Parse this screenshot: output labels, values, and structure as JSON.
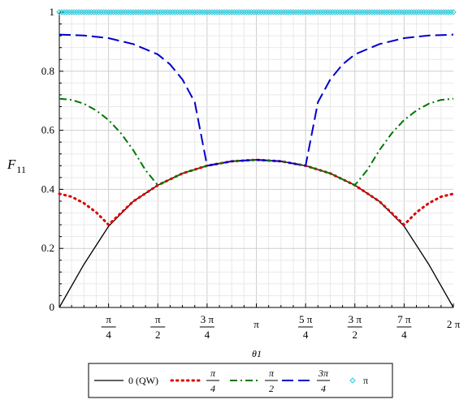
{
  "chart_data": {
    "type": "line",
    "title": "",
    "xlabel": "θ1",
    "ylabel": "F",
    "ylabel_subscript": "11",
    "xlim": [
      0,
      6.283185
    ],
    "ylim": [
      0,
      1
    ],
    "y_ticks": [
      {
        "value": 0,
        "label": "0"
      },
      {
        "value": 0.2,
        "label": "0.2"
      },
      {
        "value": 0.4,
        "label": "0.4"
      },
      {
        "value": 0.6,
        "label": "0.6"
      },
      {
        "value": 0.8,
        "label": "0.8"
      },
      {
        "value": 1,
        "label": "1"
      }
    ],
    "x_ticks": [
      {
        "value": 0.785398,
        "num": "π",
        "den": "4"
      },
      {
        "value": 1.570796,
        "num": "π",
        "den": "2"
      },
      {
        "value": 2.356194,
        "num": "3 π",
        "den": "4"
      },
      {
        "value": 3.141593,
        "label": "π"
      },
      {
        "value": 3.926991,
        "num": "5 π",
        "den": "4"
      },
      {
        "value": 4.712389,
        "num": "3 π",
        "den": "2"
      },
      {
        "value": 5.497787,
        "num": "7 π",
        "den": "4"
      },
      {
        "value": 6.283185,
        "label": "2 π"
      }
    ],
    "grid": true,
    "legend_position": "bottom",
    "series": [
      {
        "name": "0 (QW)",
        "style": "solid",
        "color": "#000000",
        "x": [
          0,
          0.3927,
          0.7854,
          1.1781,
          1.5708,
          1.9635,
          2.3562,
          2.7489,
          3.1416,
          3.5343,
          3.927,
          4.3197,
          4.7124,
          5.1051,
          5.4978,
          5.8905,
          6.2832
        ],
        "y": [
          0,
          0.146,
          0.275,
          0.359,
          0.414,
          0.454,
          0.48,
          0.495,
          0.5,
          0.495,
          0.48,
          0.454,
          0.414,
          0.359,
          0.275,
          0.146,
          0
        ]
      },
      {
        "name": "π/4",
        "label_num": "π",
        "label_den": "4",
        "style": "dotted",
        "color": "#dd0000",
        "x": [
          0,
          0.1963,
          0.3927,
          0.589,
          0.7854,
          1.1781,
          1.5708,
          1.9635,
          2.3562,
          2.7489,
          3.1416,
          3.5343,
          3.927,
          4.3197,
          4.7124,
          5.1051,
          5.4978,
          5.6941,
          5.8905,
          6.0868,
          6.2832
        ],
        "y": [
          0.385,
          0.375,
          0.353,
          0.322,
          0.28,
          0.359,
          0.414,
          0.454,
          0.48,
          0.495,
          0.5,
          0.495,
          0.48,
          0.454,
          0.414,
          0.359,
          0.28,
          0.322,
          0.353,
          0.375,
          0.385
        ]
      },
      {
        "name": "π/2",
        "label_num": "π",
        "label_den": "2",
        "style": "dashdot",
        "color": "#007700",
        "x": [
          0,
          0.1963,
          0.3927,
          0.589,
          0.7854,
          0.9817,
          1.1781,
          1.3744,
          1.5708,
          1.9635,
          2.3562,
          2.7489,
          3.1416,
          3.5343,
          3.927,
          4.3197,
          4.7124,
          4.9087,
          5.1051,
          5.3014,
          5.4978,
          5.6941,
          5.8905,
          6.0868,
          6.2832
        ],
        "y": [
          0.707,
          0.703,
          0.69,
          0.667,
          0.635,
          0.59,
          0.533,
          0.465,
          0.414,
          0.454,
          0.48,
          0.495,
          0.5,
          0.495,
          0.48,
          0.454,
          0.414,
          0.465,
          0.533,
          0.59,
          0.635,
          0.667,
          0.69,
          0.703,
          0.707
        ]
      },
      {
        "name": "3π/4",
        "label_num": "3π",
        "label_den": "4",
        "style": "dashed",
        "color": "#0000cc",
        "x": [
          0,
          0.3927,
          0.7854,
          1.1781,
          1.5708,
          1.7671,
          1.9635,
          2.1598,
          2.3562,
          2.7489,
          3.1416,
          3.5343,
          3.927,
          4.1233,
          4.3197,
          4.516,
          4.7124,
          5.1051,
          5.4978,
          5.8905,
          6.2832
        ],
        "y": [
          0.924,
          0.921,
          0.912,
          0.892,
          0.857,
          0.823,
          0.772,
          0.695,
          0.48,
          0.495,
          0.5,
          0.495,
          0.48,
          0.695,
          0.772,
          0.823,
          0.857,
          0.892,
          0.912,
          0.921,
          0.924
        ]
      },
      {
        "name": "π",
        "style": "diamonds",
        "color": "#33ccdd",
        "x": [
          0,
          6.2832
        ],
        "y": [
          1,
          1
        ]
      }
    ]
  }
}
